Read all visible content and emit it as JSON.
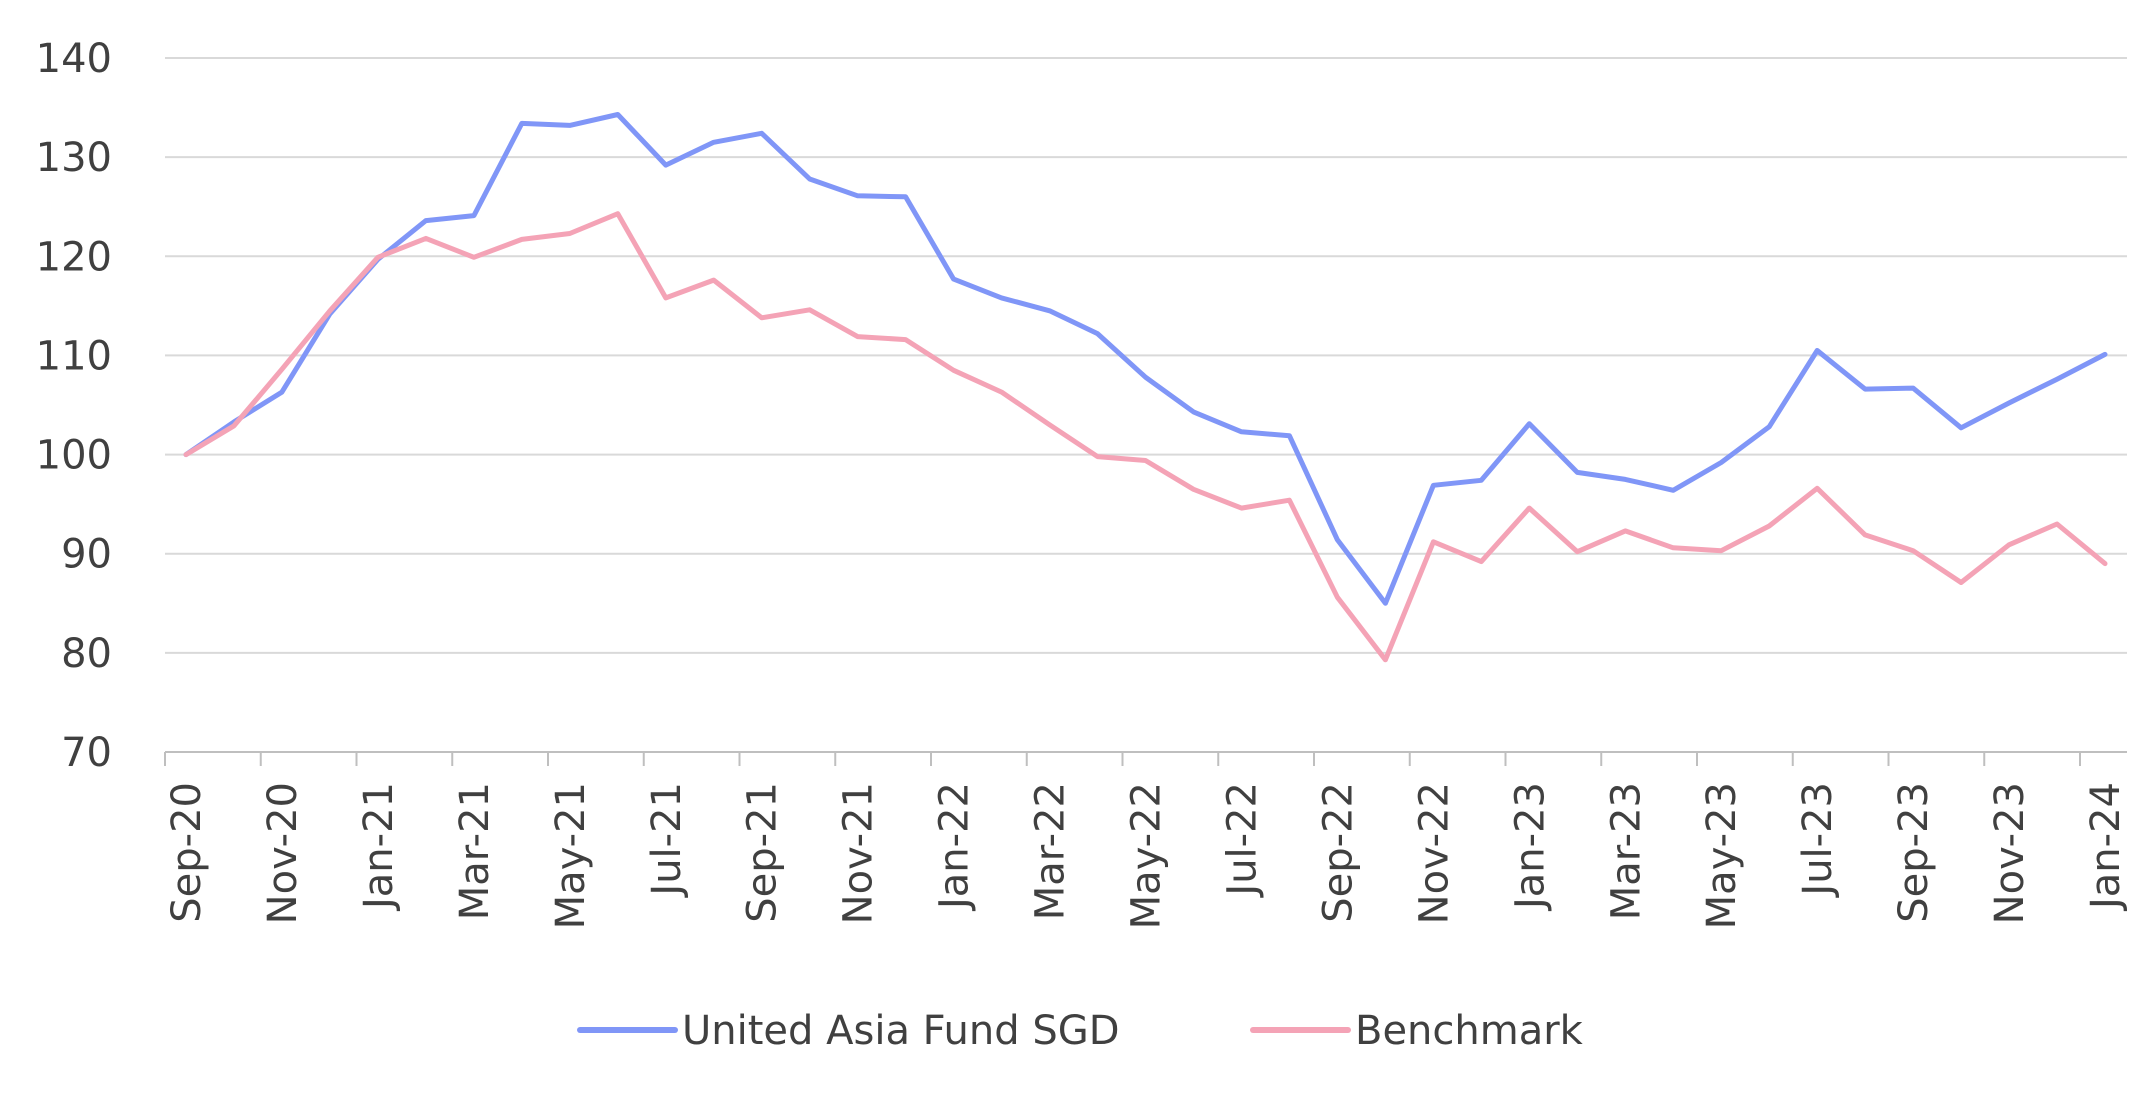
{
  "chart_data": {
    "type": "line",
    "title": "",
    "xlabel": "",
    "ylabel": "",
    "ylim": [
      70,
      140
    ],
    "y_ticks": [
      "70",
      "80",
      "90",
      "100",
      "110",
      "120",
      "130",
      "140"
    ],
    "grid": "horizontal",
    "legend_position": "bottom",
    "x": [
      "Sep-20",
      "Oct-20",
      "Nov-20",
      "Dec-20",
      "Jan-21",
      "Feb-21",
      "Mar-21",
      "Apr-21",
      "May-21",
      "Jun-21",
      "Jul-21",
      "Aug-21",
      "Sep-21",
      "Oct-21",
      "Nov-21",
      "Dec-21",
      "Jan-22",
      "Feb-22",
      "Mar-22",
      "Apr-22",
      "May-22",
      "Jun-22",
      "Jul-22",
      "Aug-22",
      "Sep-22",
      "Oct-22",
      "Nov-22",
      "Dec-22",
      "Jan-23",
      "Feb-23",
      "Mar-23",
      "Apr-23",
      "May-23",
      "Jun-23",
      "Jul-23",
      "Aug-23",
      "Sep-23",
      "Oct-23",
      "Nov-23",
      "Dec-23",
      "Jan-24"
    ],
    "x_tick_labels": [
      "Sep-20",
      "Nov-20",
      "Jan-21",
      "Mar-21",
      "May-21",
      "Jul-21",
      "Sep-21",
      "Nov-21",
      "Jan-22",
      "Mar-22",
      "May-22",
      "Jul-22",
      "Sep-22",
      "Nov-22",
      "Jan-23",
      "Mar-23",
      "May-23",
      "Jul-23",
      "Sep-23",
      "Nov-23",
      "Jan-24"
    ],
    "series": [
      {
        "name": "United Asia Fund SGD",
        "color": "#8096F7",
        "values": [
          100,
          103.3,
          106.3,
          114.2,
          119.7,
          123.6,
          124.1,
          133.4,
          133.2,
          134.3,
          129.2,
          131.5,
          132.4,
          127.8,
          126.1,
          126.0,
          117.7,
          115.8,
          114.5,
          112.2,
          107.8,
          104.3,
          102.3,
          101.9,
          91.4,
          85.0,
          96.9,
          97.4,
          103.1,
          98.2,
          97.5,
          96.4,
          99.2,
          102.8,
          110.5,
          106.6,
          106.7,
          102.7,
          105.2,
          107.6,
          110.1
        ]
      },
      {
        "name": "Benchmark",
        "color": "#F4A3B6",
        "values": [
          100,
          102.9,
          108.6,
          114.5,
          119.9,
          121.8,
          119.9,
          121.7,
          122.3,
          124.3,
          115.8,
          117.6,
          113.8,
          114.6,
          111.9,
          111.6,
          108.5,
          106.3,
          103.0,
          99.8,
          99.4,
          96.5,
          94.6,
          95.4,
          85.6,
          79.3,
          91.2,
          89.2,
          94.6,
          90.2,
          92.3,
          90.6,
          90.3,
          92.8,
          96.6,
          91.9,
          90.3,
          87.1,
          90.9,
          93.0,
          89.0
        ]
      }
    ]
  }
}
